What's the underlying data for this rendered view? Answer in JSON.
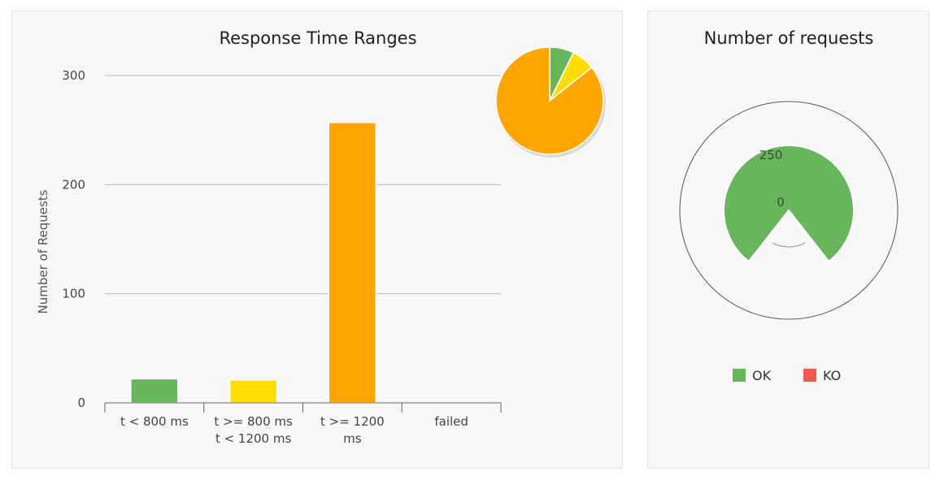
{
  "chart_data": [
    {
      "type": "bar",
      "title": "Response Time Ranges",
      "ylabel": "Number of Requests",
      "xlabel": "",
      "ylim": [
        0,
        300
      ],
      "yticks": [
        0,
        100,
        200,
        300
      ],
      "grid": true,
      "categories": [
        [
          "t < 800 ms"
        ],
        [
          "t >= 800 ms",
          "t < 1200 ms"
        ],
        [
          "t >= 1200",
          "ms"
        ],
        [
          "failed"
        ]
      ],
      "values": [
        22,
        21,
        257,
        0
      ],
      "colors": [
        "#68b65c",
        "#ffdd00",
        "#ffa500",
        "#f15b4f"
      ],
      "inset": {
        "type": "pie",
        "slices": [
          22,
          21,
          257,
          0
        ],
        "colors": [
          "#68b65c",
          "#ffdd00",
          "#ffa500",
          "#f15b4f"
        ]
      }
    },
    {
      "type": "polar",
      "title": "Number of requests",
      "radial_ticks": [
        "0",
        "250"
      ],
      "series": [
        {
          "name": "OK",
          "value": 300,
          "color": "#68b65c"
        },
        {
          "name": "KO",
          "value": 0,
          "color": "#f15b4f"
        }
      ],
      "legend": "bottom"
    }
  ]
}
